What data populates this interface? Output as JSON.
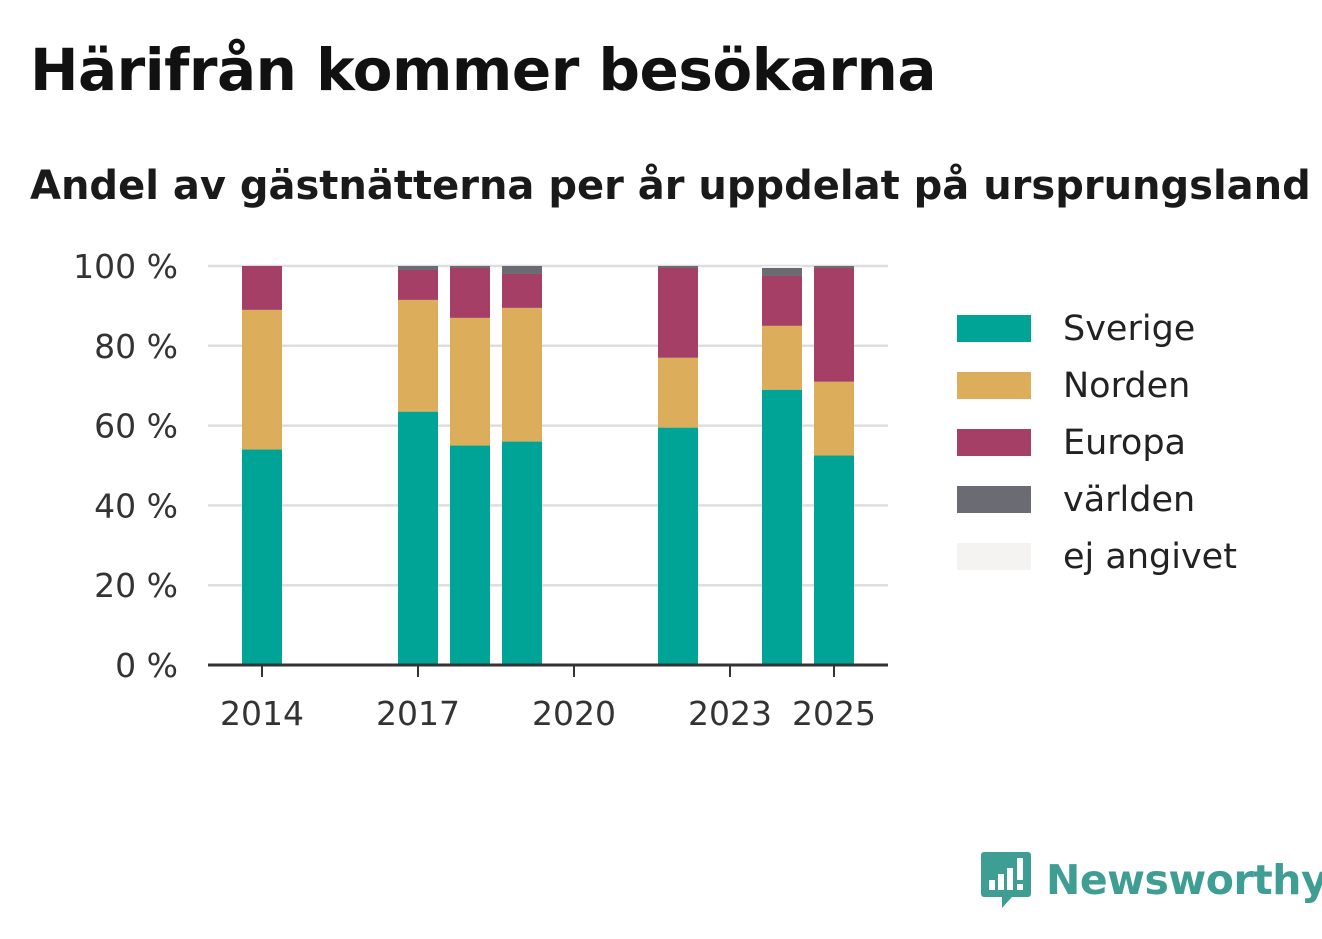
{
  "title": "Härifrån kommer besökarna",
  "subtitle": "Andel av gästnätterna per år uppdelat på ursprungsland",
  "brand": {
    "name": "Newsworthy",
    "icon": "newsworthy-logo-icon",
    "color": "#3f9e94"
  },
  "chart_data": {
    "type": "bar",
    "stacked": true,
    "x": [
      2014,
      2017,
      2018,
      2019,
      2022,
      2024,
      2025
    ],
    "x_ticks": [
      "2014",
      "2017",
      "2020",
      "2023",
      "2025"
    ],
    "x_tick_values": [
      2014,
      2017,
      2020,
      2023,
      2025
    ],
    "xlim": [
      2013,
      2026
    ],
    "ylim": [
      0,
      100
    ],
    "y_ticks": [
      "0 %",
      "20 %",
      "40 %",
      "60 %",
      "80 %",
      "100 %"
    ],
    "y_tick_values": [
      0,
      20,
      40,
      60,
      80,
      100
    ],
    "grid": true,
    "legend_position": "right",
    "series": [
      {
        "name": "Sverige",
        "color": "#00a497",
        "values": [
          54,
          63.5,
          55,
          56,
          59.5,
          69,
          52.5
        ]
      },
      {
        "name": "Norden",
        "color": "#dcad5a",
        "values": [
          35,
          28,
          32,
          33.5,
          17.5,
          16,
          18.5
        ]
      },
      {
        "name": "Europa",
        "color": "#a53f66",
        "values": [
          11,
          7.5,
          12.5,
          8.5,
          22.5,
          12.5,
          28.5
        ]
      },
      {
        "name": "världen",
        "color": "#6b6b73",
        "values": [
          0,
          1,
          0.5,
          2,
          0.5,
          2,
          0.5
        ]
      },
      {
        "name": "ej angivet",
        "color": "#f4f3f1",
        "values": [
          0,
          0,
          0,
          0,
          0,
          0.5,
          0
        ]
      }
    ]
  }
}
